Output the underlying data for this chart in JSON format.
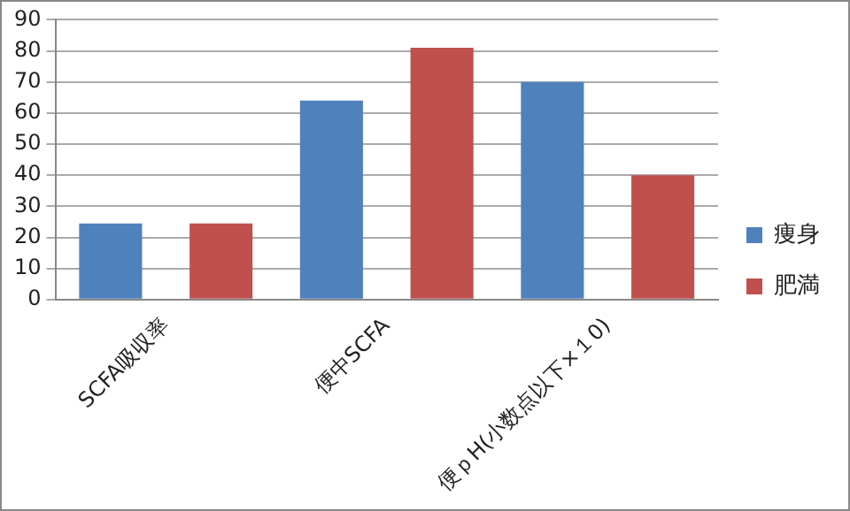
{
  "chart_data": {
    "type": "bar",
    "categories": [
      "SCFA吸収率",
      "便中SCFA",
      "便ｐH(小数点以下×１0)"
    ],
    "series": [
      {
        "name": "痩身",
        "color": "#4f81bd",
        "values": [
          24.5,
          64,
          70
        ]
      },
      {
        "name": "肥満",
        "color": "#c0504d",
        "values": [
          24.5,
          81,
          40
        ]
      }
    ],
    "ylim": [
      0,
      90
    ],
    "yticks": [
      0,
      10,
      20,
      30,
      40,
      50,
      60,
      70,
      80,
      90
    ],
    "grid": "y",
    "legend": "right"
  }
}
